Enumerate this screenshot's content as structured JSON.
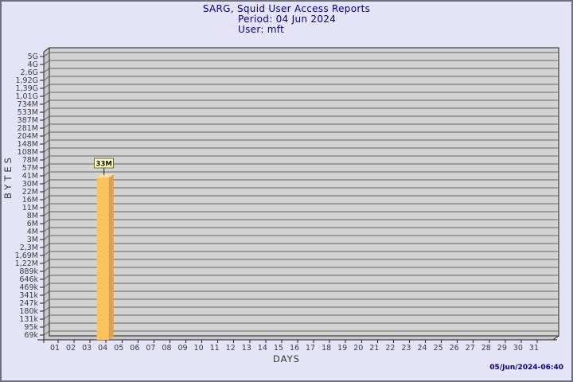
{
  "footer": {
    "timestamp": "05/Jun/2024-06:40"
  },
  "chart_data": {
    "type": "bar",
    "title": "SARG, Squid User Access Reports",
    "subtitle_lines": [
      "Period: 04 Jun 2024",
      "User: mft"
    ],
    "xlabel": "DAYS",
    "ylabel": "BYTES",
    "y_scale": "log",
    "grid": "horizontal",
    "legend": null,
    "y_tick_labels": [
      "5G",
      "4G",
      "2,6G",
      "1,92G",
      "1,39G",
      "1,01G",
      "734M",
      "533M",
      "387M",
      "281M",
      "204M",
      "148M",
      "108M",
      "78M",
      "57M",
      "41M",
      "30M",
      "22M",
      "16M",
      "11M",
      "8M",
      "6M",
      "4M",
      "3M",
      "2,3M",
      "1,69M",
      "1,22M",
      "889k",
      "646k",
      "469k",
      "341k",
      "247k",
      "180k",
      "131k",
      "95k",
      "69k"
    ],
    "x_tick_labels": [
      "01",
      "02",
      "03",
      "04",
      "05",
      "06",
      "07",
      "08",
      "09",
      "10",
      "11",
      "12",
      "13",
      "14",
      "15",
      "16",
      "17",
      "18",
      "19",
      "20",
      "21",
      "22",
      "23",
      "24",
      "25",
      "26",
      "27",
      "28",
      "29",
      "30",
      "31"
    ],
    "bars": [
      {
        "day": "04",
        "value_label": "33M",
        "value_bytes": 33000000
      }
    ],
    "colors": {
      "page_bg": "#e4e4f6",
      "page_border": "#70707c",
      "title_text": "#00008c",
      "plot_bg": "#d3d3d3",
      "plot_wall": "#c7c7c7",
      "grid_line": "#646464",
      "axis_line": "#1f1f1f",
      "tick_text": "#3d3d3d",
      "bar_front": "#fbc35e",
      "bar_side": "#dea149",
      "bar_top": "#fce1a0",
      "value_box_bg": "#ffffc4",
      "value_box_border": "#6b6b23",
      "value_box_text": "#111111"
    }
  }
}
